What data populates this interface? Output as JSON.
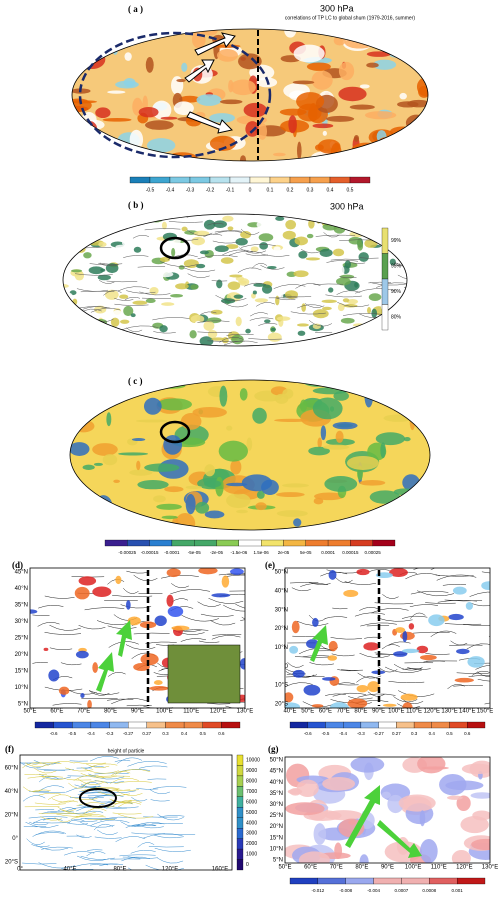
{
  "a": {
    "label": "( a )",
    "level": "300 hPa",
    "subtitle": "correlations of TP LC to global shum (1979-2016, summer)",
    "colorbar": [
      "-0.5",
      "-0.4",
      "-0.3",
      "-0.2",
      "-0.1",
      "0",
      "0.1",
      "0.2",
      "0.3",
      "0.4",
      "0.5"
    ]
  },
  "b": {
    "label": "( b )",
    "level": "300 hPa",
    "colorbar": [
      "99%",
      "95%",
      "90%",
      "80%"
    ]
  },
  "c": {
    "label": "( c )",
    "colorbar": [
      "-0.00025",
      "-0.00015",
      "-0.0001",
      "-5e-05",
      "-2e-05",
      "-1.5e-06",
      "1.5e-06",
      "2e-05",
      "5e-05",
      "0.0001",
      "0.00015",
      "0.00025"
    ]
  },
  "d": {
    "label": "(d)",
    "x_labels": [
      "50°E",
      "60°E",
      "70°E",
      "80°E",
      "90°E",
      "100°E",
      "110°E",
      "120°E",
      "130°E"
    ],
    "y_labels": [
      "45°N",
      "40°N",
      "35°N",
      "30°N",
      "25°N",
      "20°N",
      "15°N",
      "10°N",
      "5°N"
    ],
    "colorbar": [
      "-0.6",
      "-0.5",
      "-0.4",
      "-0.3",
      "-0.27",
      "0.27",
      "0.3",
      "0.4",
      "0.5",
      "0.6"
    ]
  },
  "e": {
    "label": "(e)",
    "x_labels": [
      "40°E",
      "50°E",
      "60°E",
      "70°E",
      "80°E",
      "90°E",
      "100°E",
      "110°E",
      "120°E",
      "130°E",
      "140°E",
      "150°E"
    ],
    "y_labels": [
      "50°N",
      "40°N",
      "30°N",
      "20°N",
      "10°N",
      "0",
      "10°S",
      "20°S"
    ],
    "colorbar": [
      "-0.6",
      "-0.5",
      "-0.4",
      "-0.3",
      "-0.27",
      "0.27",
      "0.3",
      "0.4",
      "0.5",
      "0.6"
    ]
  },
  "f": {
    "label": "(f)",
    "title": "height of particle",
    "x_labels": [
      "0°",
      "40°E",
      "80°E",
      "120°E",
      "160°E"
    ],
    "y_labels": [
      "60°N",
      "40°N",
      "20°N",
      "0°",
      "20°S"
    ],
    "colorbar": [
      "10000",
      "9000",
      "8000",
      "7000",
      "6000",
      "5000",
      "4000",
      "3000",
      "2000",
      "1000",
      "0"
    ]
  },
  "g": {
    "label": "(g)",
    "x_labels": [
      "50°E",
      "60°E",
      "70°E",
      "80°E",
      "90°E",
      "100°E",
      "110°E",
      "120°E",
      "130°E"
    ],
    "y_labels": [
      "50°N",
      "45°N",
      "40°N",
      "35°N",
      "30°N",
      "25°N",
      "20°N",
      "15°N",
      "10°N",
      "5°N"
    ],
    "colorbar": [
      "-0.012",
      "-0.008",
      "-0.004",
      "0.0007",
      "0.0008",
      "0.001"
    ]
  }
}
